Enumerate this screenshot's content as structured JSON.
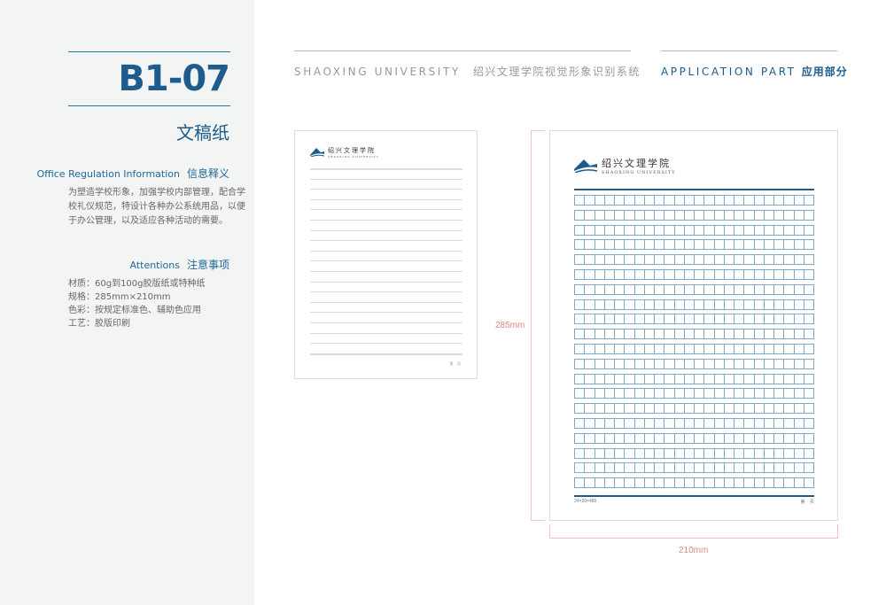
{
  "sidebar": {
    "code": "B1-07",
    "title": "文稿纸",
    "info_heading_en": "Office Regulation Information",
    "info_heading_cn": "信息释义",
    "info_text": "为塑造学校形象，加强学校内部管理，配合学校礼仪规范，特设计各种办公系统用品，以便于办公管理，以及适应各种活动的需要。",
    "attention_heading_en": "Attentions",
    "attention_heading_cn": "注意事项",
    "attention_items": [
      "材质：60g到100g胶版纸或特种纸",
      "规格：285mm×210mm",
      "色彩：按规定标准色、辅助色应用",
      "工艺：胶版印刷"
    ]
  },
  "header": {
    "left_en": "SHAOXING UNIVERSITY",
    "left_cn": "绍兴文理学院视觉形象识别系统",
    "right_en": "APPLICATION PART",
    "right_cn": "应用部分"
  },
  "logo": {
    "cn": "绍兴文理学院",
    "en": "SHAOXING UNIVERSITY"
  },
  "small_paper": {
    "lines": 19,
    "footer": "第    页"
  },
  "large_paper": {
    "columns": 24,
    "rows": 20,
    "footer_left": "24×20=480",
    "footer_right": "第    页"
  },
  "dimensions": {
    "height": "285mm",
    "width": "210mm"
  },
  "colors": {
    "brand": "#1d5c8c",
    "grid": "#7fa9c2",
    "dimension": "#e08a84"
  }
}
